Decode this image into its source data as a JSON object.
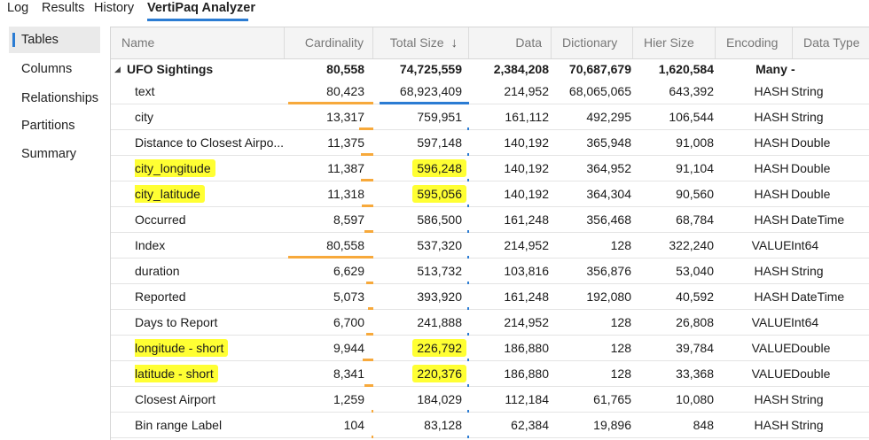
{
  "top_tabs": [
    "Log",
    "Results",
    "History",
    "VertiPaq Analyzer"
  ],
  "active_top_tab": "VertiPaq Analyzer",
  "side_nav": [
    "Tables",
    "Columns",
    "Relationships",
    "Partitions",
    "Summary"
  ],
  "active_side_item": "Tables",
  "columns": {
    "name": "Name",
    "cardinality": "Cardinality",
    "total_size": "Total Size",
    "data": "Data",
    "dictionary": "Dictionary",
    "hier_size": "Hier Size",
    "encoding": "Encoding",
    "data_type": "Data Type"
  },
  "sort_icon": "arrow-down-icon",
  "expand_icon": "collapse-triangle-icon",
  "table": {
    "name": "UFO Sightings",
    "cardinality": "80,558",
    "total_size": "74,725,559",
    "data": "2,384,208",
    "dictionary": "70,687,679",
    "hier_size": "1,620,584",
    "encoding": "Many",
    "data_type": "-"
  },
  "rows": [
    {
      "name": "text",
      "cardinality": "80,423",
      "total_size": "68,923,409",
      "data": "214,952",
      "dictionary": "68,065,065",
      "hier_size": "643,392",
      "encoding": "HASH",
      "data_type": "String"
    },
    {
      "name": "city",
      "cardinality": "13,317",
      "total_size": "759,951",
      "data": "161,112",
      "dictionary": "492,295",
      "hier_size": "106,544",
      "encoding": "HASH",
      "data_type": "String"
    },
    {
      "name": "Distance to Closest Airpo...",
      "cardinality": "11,375",
      "total_size": "597,148",
      "data": "140,192",
      "dictionary": "365,948",
      "hier_size": "91,008",
      "encoding": "HASH",
      "data_type": "Double"
    },
    {
      "name": "city_longitude",
      "cardinality": "11,387",
      "total_size": "596,248",
      "data": "140,192",
      "dictionary": "364,952",
      "hier_size": "91,104",
      "encoding": "HASH",
      "data_type": "Double"
    },
    {
      "name": "city_latitude",
      "cardinality": "11,318",
      "total_size": "595,056",
      "data": "140,192",
      "dictionary": "364,304",
      "hier_size": "90,560",
      "encoding": "HASH",
      "data_type": "Double"
    },
    {
      "name": "Occurred",
      "cardinality": "8,597",
      "total_size": "586,500",
      "data": "161,248",
      "dictionary": "356,468",
      "hier_size": "68,784",
      "encoding": "HASH",
      "data_type": "DateTime"
    },
    {
      "name": "Index",
      "cardinality": "80,558",
      "total_size": "537,320",
      "data": "214,952",
      "dictionary": "128",
      "hier_size": "322,240",
      "encoding": "VALUE",
      "data_type": "Int64"
    },
    {
      "name": "duration",
      "cardinality": "6,629",
      "total_size": "513,732",
      "data": "103,816",
      "dictionary": "356,876",
      "hier_size": "53,040",
      "encoding": "HASH",
      "data_type": "String"
    },
    {
      "name": "Reported",
      "cardinality": "5,073",
      "total_size": "393,920",
      "data": "161,248",
      "dictionary": "192,080",
      "hier_size": "40,592",
      "encoding": "HASH",
      "data_type": "DateTime"
    },
    {
      "name": "Days to Report",
      "cardinality": "6,700",
      "total_size": "241,888",
      "data": "214,952",
      "dictionary": "128",
      "hier_size": "26,808",
      "encoding": "VALUE",
      "data_type": "Int64"
    },
    {
      "name": "longitude - short",
      "cardinality": "9,944",
      "total_size": "226,792",
      "data": "186,880",
      "dictionary": "128",
      "hier_size": "39,784",
      "encoding": "VALUE",
      "data_type": "Double"
    },
    {
      "name": "latitude - short",
      "cardinality": "8,341",
      "total_size": "220,376",
      "data": "186,880",
      "dictionary": "128",
      "hier_size": "33,368",
      "encoding": "VALUE",
      "data_type": "Double"
    },
    {
      "name": "Closest Airport",
      "cardinality": "1,259",
      "total_size": "184,029",
      "data": "112,184",
      "dictionary": "61,765",
      "hier_size": "10,080",
      "encoding": "HASH",
      "data_type": "String"
    },
    {
      "name": "Bin range Label",
      "cardinality": "104",
      "total_size": "83,128",
      "data": "62,384",
      "dictionary": "19,896",
      "hier_size": "848",
      "encoding": "HASH",
      "data_type": "String"
    }
  ],
  "highlighted_rows": [
    "city_longitude",
    "city_latitude",
    "longitude - short",
    "latitude - short"
  ],
  "colors": {
    "highlight": "#ffff33",
    "cardinality_bar": "#f7a93b",
    "size_bar": "#2b7cd3",
    "accent": "#2b7cd3"
  }
}
